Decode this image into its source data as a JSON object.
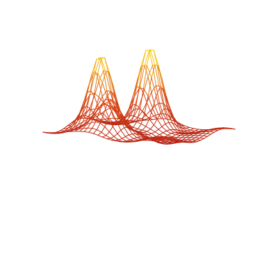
{
  "chart_data": {
    "type": "surface-wireframe",
    "title": "",
    "xlabel": "",
    "ylabel": "",
    "zlabel": "",
    "axes_visible": false,
    "grid": false,
    "legend": "none",
    "mesh": {
      "rows": 25,
      "cols": 25
    },
    "x_range": [
      -3,
      3
    ],
    "y_range": [
      -3,
      3
    ],
    "z_range": [
      -0.25,
      1.0
    ],
    "surface": {
      "description_hidden": true,
      "peaks": [
        {
          "x": -0.6,
          "y": -1.6,
          "height": 1.0
        },
        {
          "x": -1.6,
          "y": 0.6,
          "height": 0.97
        },
        {
          "x": -0.3,
          "y": 1.7,
          "height": 0.42
        }
      ],
      "troughs": [
        {
          "x": 1.3,
          "y": 0.0,
          "depth": -0.18
        }
      ],
      "base": 0.0
    },
    "colormap": [
      "#aa1515",
      "#d94a14",
      "#ffdf14"
    ],
    "background_color": "#ffffff"
  }
}
